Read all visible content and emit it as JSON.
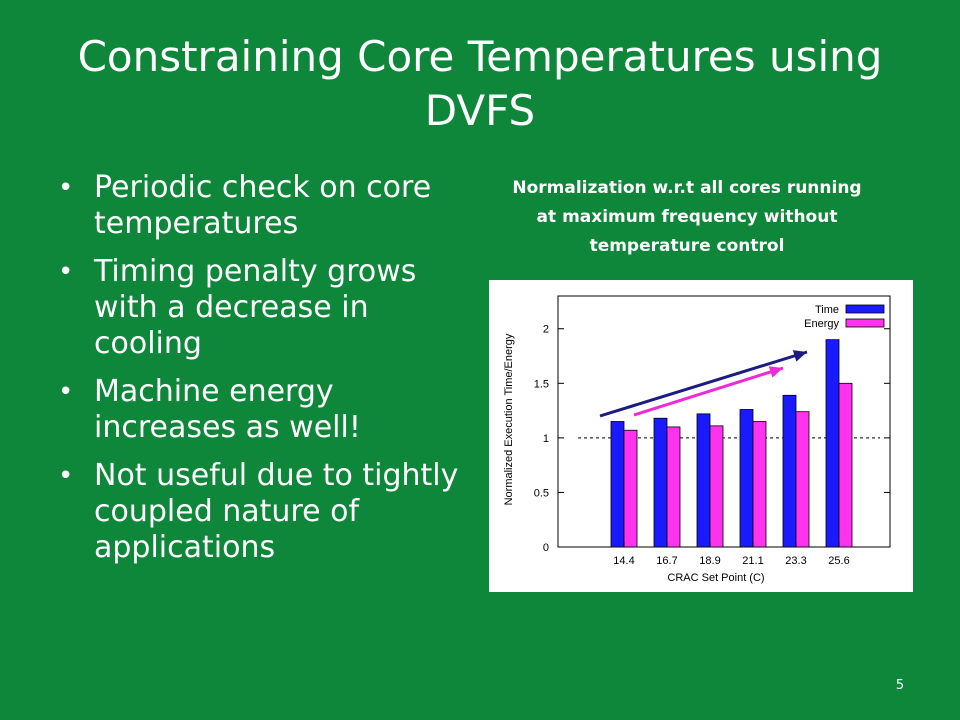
{
  "slide": {
    "title": "Constraining Core Temperatures using DVFS",
    "bullets": [
      "Periodic check on core temperatures",
      "Timing penalty grows with a decrease in cooling",
      "Machine energy increases as well!",
      "Not useful due to tightly coupled nature of applications"
    ],
    "note": "Normalization w.r.t all cores running at maximum frequency without temperature control",
    "page_number": "5"
  },
  "colors": {
    "background": "#0e873b",
    "time_series": "#1a1aff",
    "energy_series": "#ff33ee",
    "arrow_time": "#1b1b80",
    "arrow_energy": "#ee2ad8"
  },
  "chart_data": {
    "type": "bar",
    "categories": [
      "14.4",
      "16.7",
      "18.9",
      "21.1",
      "23.3",
      "25.6"
    ],
    "series": [
      {
        "name": "Time",
        "values": [
          1.15,
          1.18,
          1.22,
          1.26,
          1.39,
          1.9
        ]
      },
      {
        "name": "Energy",
        "values": [
          1.07,
          1.1,
          1.11,
          1.15,
          1.24,
          1.5
        ]
      }
    ],
    "xlabel": "CRAC Set Point (C)",
    "ylabel": "Normalized Execution Time/Energy",
    "ylim": [
      0,
      2.3
    ],
    "yticks": [
      0,
      0.5,
      1,
      1.5,
      2
    ],
    "ytick_labels": [
      "0",
      "0.5",
      "1",
      "1.5",
      "2"
    ],
    "reference_line": 1,
    "legend_position": "top-right"
  }
}
